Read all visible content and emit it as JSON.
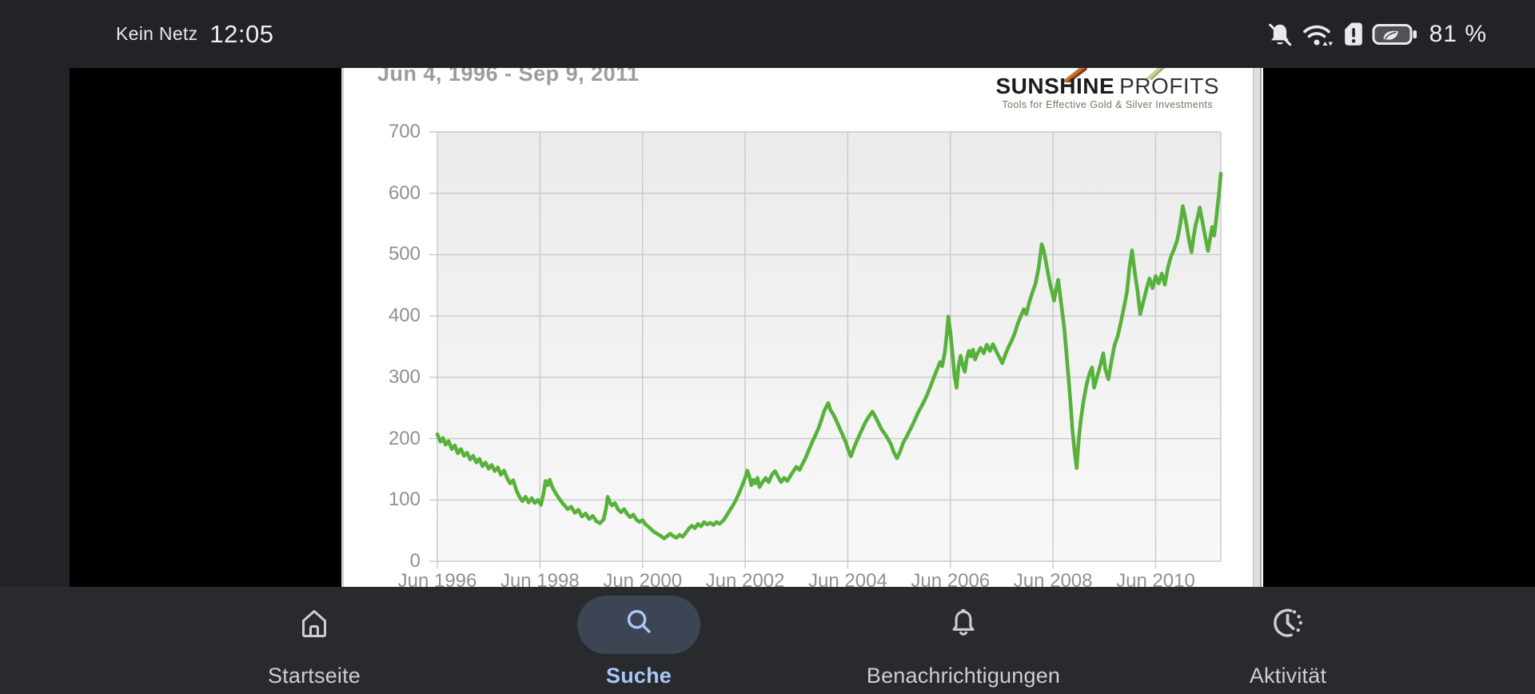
{
  "status_bar": {
    "carrier": "Kein Netz",
    "time": "12:05",
    "battery_percent": "81 %",
    "icons": [
      "notifications-off-icon",
      "wifi-icon",
      "sim-alert-icon",
      "battery-saver-icon"
    ]
  },
  "chart_data": {
    "type": "line",
    "title": "Jun 4, 1996 - Sep 9, 2011",
    "logo": {
      "brand_bold": "SUNSHINE",
      "brand_light": "PROFITS",
      "tagline": "Tools for Effective Gold & Silver Investments"
    },
    "ylim": [
      0,
      700
    ],
    "yticks": [
      0,
      100,
      200,
      300,
      400,
      500,
      600,
      700
    ],
    "xticks": [
      {
        "label": "Jun 1996",
        "t": 1996.42
      },
      {
        "label": "Jun 1998",
        "t": 1998.42
      },
      {
        "label": "Jun 2000",
        "t": 2000.42
      },
      {
        "label": "Jun 2002",
        "t": 2002.42
      },
      {
        "label": "Jun 2004",
        "t": 2004.42
      },
      {
        "label": "Jun 2006",
        "t": 2006.42
      },
      {
        "label": "Jun 2008",
        "t": 2008.42
      },
      {
        "label": "Jun 2010",
        "t": 2010.42
      }
    ],
    "x_range": [
      1996.42,
      2011.69
    ],
    "grid": true,
    "legend": "none",
    "line_color": "#57b13b",
    "grid_color": "#c9c9c9",
    "label_color": "#909090",
    "series": [
      {
        "points": [
          [
            1996.42,
            207
          ],
          [
            1996.48,
            195
          ],
          [
            1996.53,
            201
          ],
          [
            1996.58,
            190
          ],
          [
            1996.64,
            196
          ],
          [
            1996.7,
            183
          ],
          [
            1996.76,
            189
          ],
          [
            1996.82,
            176
          ],
          [
            1996.88,
            183
          ],
          [
            1996.94,
            172
          ],
          [
            1997.0,
            177
          ],
          [
            1997.06,
            166
          ],
          [
            1997.12,
            172
          ],
          [
            1997.18,
            161
          ],
          [
            1997.24,
            167
          ],
          [
            1997.3,
            155
          ],
          [
            1997.36,
            161
          ],
          [
            1997.42,
            151
          ],
          [
            1997.48,
            157
          ],
          [
            1997.54,
            147
          ],
          [
            1997.6,
            153
          ],
          [
            1997.66,
            141
          ],
          [
            1997.72,
            148
          ],
          [
            1997.78,
            136
          ],
          [
            1997.84,
            127
          ],
          [
            1997.9,
            132
          ],
          [
            1997.96,
            116
          ],
          [
            1998.02,
            105
          ],
          [
            1998.08,
            98
          ],
          [
            1998.14,
            105
          ],
          [
            1998.2,
            96
          ],
          [
            1998.26,
            103
          ],
          [
            1998.32,
            95
          ],
          [
            1998.38,
            100
          ],
          [
            1998.44,
            92
          ],
          [
            1998.49,
            110
          ],
          [
            1998.53,
            131
          ],
          [
            1998.57,
            124
          ],
          [
            1998.61,
            133
          ],
          [
            1998.66,
            121
          ],
          [
            1998.72,
            112
          ],
          [
            1998.78,
            104
          ],
          [
            1998.84,
            97
          ],
          [
            1998.9,
            91
          ],
          [
            1998.96,
            85
          ],
          [
            1999.03,
            89
          ],
          [
            1999.1,
            79
          ],
          [
            1999.17,
            84
          ],
          [
            1999.24,
            73
          ],
          [
            1999.31,
            78
          ],
          [
            1999.38,
            69
          ],
          [
            1999.45,
            74
          ],
          [
            1999.52,
            65
          ],
          [
            1999.59,
            62
          ],
          [
            1999.66,
            68
          ],
          [
            1999.71,
            86
          ],
          [
            1999.74,
            105
          ],
          [
            1999.78,
            97
          ],
          [
            1999.82,
            91
          ],
          [
            1999.88,
            95
          ],
          [
            1999.94,
            85
          ],
          [
            2000.0,
            80
          ],
          [
            2000.06,
            85
          ],
          [
            2000.12,
            77
          ],
          [
            2000.18,
            72
          ],
          [
            2000.24,
            76
          ],
          [
            2000.3,
            68
          ],
          [
            2000.36,
            64
          ],
          [
            2000.42,
            67
          ],
          [
            2000.48,
            60
          ],
          [
            2000.54,
            56
          ],
          [
            2000.6,
            51
          ],
          [
            2000.66,
            47
          ],
          [
            2000.72,
            44
          ],
          [
            2000.78,
            41
          ],
          [
            2000.84,
            37
          ],
          [
            2000.9,
            41
          ],
          [
            2000.96,
            45
          ],
          [
            2001.02,
            41
          ],
          [
            2001.08,
            38
          ],
          [
            2001.14,
            43
          ],
          [
            2001.2,
            40
          ],
          [
            2001.26,
            46
          ],
          [
            2001.32,
            53
          ],
          [
            2001.38,
            58
          ],
          [
            2001.44,
            54
          ],
          [
            2001.5,
            61
          ],
          [
            2001.56,
            57
          ],
          [
            2001.62,
            64
          ],
          [
            2001.68,
            60
          ],
          [
            2001.74,
            63
          ],
          [
            2001.8,
            59
          ],
          [
            2001.86,
            64
          ],
          [
            2001.92,
            61
          ],
          [
            2002.0,
            67
          ],
          [
            2002.06,
            75
          ],
          [
            2002.12,
            83
          ],
          [
            2002.18,
            91
          ],
          [
            2002.24,
            100
          ],
          [
            2002.3,
            111
          ],
          [
            2002.36,
            123
          ],
          [
            2002.42,
            136
          ],
          [
            2002.46,
            148
          ],
          [
            2002.5,
            139
          ],
          [
            2002.54,
            124
          ],
          [
            2002.58,
            133
          ],
          [
            2002.62,
            127
          ],
          [
            2002.66,
            136
          ],
          [
            2002.7,
            121
          ],
          [
            2002.76,
            129
          ],
          [
            2002.82,
            136
          ],
          [
            2002.88,
            129
          ],
          [
            2002.94,
            141
          ],
          [
            2003.0,
            147
          ],
          [
            2003.06,
            138
          ],
          [
            2003.12,
            129
          ],
          [
            2003.18,
            136
          ],
          [
            2003.24,
            131
          ],
          [
            2003.3,
            139
          ],
          [
            2003.36,
            147
          ],
          [
            2003.42,
            154
          ],
          [
            2003.48,
            149
          ],
          [
            2003.54,
            159
          ],
          [
            2003.6,
            169
          ],
          [
            2003.66,
            181
          ],
          [
            2003.72,
            193
          ],
          [
            2003.78,
            204
          ],
          [
            2003.84,
            215
          ],
          [
            2003.9,
            229
          ],
          [
            2003.96,
            245
          ],
          [
            2004.0,
            252
          ],
          [
            2004.04,
            258
          ],
          [
            2004.08,
            247
          ],
          [
            2004.14,
            239
          ],
          [
            2004.2,
            229
          ],
          [
            2004.26,
            217
          ],
          [
            2004.32,
            206
          ],
          [
            2004.38,
            194
          ],
          [
            2004.44,
            179
          ],
          [
            2004.48,
            171
          ],
          [
            2004.54,
            185
          ],
          [
            2004.6,
            197
          ],
          [
            2004.66,
            208
          ],
          [
            2004.72,
            219
          ],
          [
            2004.78,
            229
          ],
          [
            2004.84,
            237
          ],
          [
            2004.9,
            244
          ],
          [
            2004.96,
            235
          ],
          [
            2005.02,
            225
          ],
          [
            2005.08,
            215
          ],
          [
            2005.14,
            208
          ],
          [
            2005.2,
            200
          ],
          [
            2005.26,
            191
          ],
          [
            2005.32,
            177
          ],
          [
            2005.38,
            168
          ],
          [
            2005.44,
            179
          ],
          [
            2005.5,
            193
          ],
          [
            2005.56,
            202
          ],
          [
            2005.62,
            212
          ],
          [
            2005.68,
            222
          ],
          [
            2005.74,
            233
          ],
          [
            2005.8,
            244
          ],
          [
            2005.86,
            253
          ],
          [
            2005.92,
            263
          ],
          [
            2005.98,
            274
          ],
          [
            2006.04,
            287
          ],
          [
            2006.1,
            300
          ],
          [
            2006.16,
            313
          ],
          [
            2006.22,
            325
          ],
          [
            2006.26,
            318
          ],
          [
            2006.31,
            340
          ],
          [
            2006.35,
            371
          ],
          [
            2006.38,
            399
          ],
          [
            2006.42,
            373
          ],
          [
            2006.46,
            339
          ],
          [
            2006.5,
            303
          ],
          [
            2006.54,
            283
          ],
          [
            2006.58,
            319
          ],
          [
            2006.62,
            335
          ],
          [
            2006.66,
            319
          ],
          [
            2006.7,
            309
          ],
          [
            2006.74,
            331
          ],
          [
            2006.78,
            343
          ],
          [
            2006.82,
            334
          ],
          [
            2006.86,
            345
          ],
          [
            2006.9,
            329
          ],
          [
            2006.95,
            339
          ],
          [
            2007.01,
            348
          ],
          [
            2007.07,
            339
          ],
          [
            2007.13,
            353
          ],
          [
            2007.19,
            343
          ],
          [
            2007.25,
            354
          ],
          [
            2007.31,
            343
          ],
          [
            2007.37,
            333
          ],
          [
            2007.43,
            323
          ],
          [
            2007.49,
            337
          ],
          [
            2007.55,
            349
          ],
          [
            2007.61,
            359
          ],
          [
            2007.67,
            371
          ],
          [
            2007.73,
            387
          ],
          [
            2007.79,
            399
          ],
          [
            2007.85,
            411
          ],
          [
            2007.9,
            403
          ],
          [
            2007.96,
            423
          ],
          [
            2008.02,
            439
          ],
          [
            2008.08,
            453
          ],
          [
            2008.14,
            479
          ],
          [
            2008.2,
            517
          ],
          [
            2008.24,
            506
          ],
          [
            2008.28,
            489
          ],
          [
            2008.32,
            471
          ],
          [
            2008.36,
            453
          ],
          [
            2008.4,
            439
          ],
          [
            2008.44,
            425
          ],
          [
            2008.48,
            444
          ],
          [
            2008.52,
            459
          ],
          [
            2008.56,
            433
          ],
          [
            2008.6,
            406
          ],
          [
            2008.64,
            379
          ],
          [
            2008.68,
            341
          ],
          [
            2008.72,
            301
          ],
          [
            2008.76,
            259
          ],
          [
            2008.8,
            213
          ],
          [
            2008.84,
            179
          ],
          [
            2008.88,
            152
          ],
          [
            2008.92,
            197
          ],
          [
            2008.96,
            229
          ],
          [
            2009.01,
            259
          ],
          [
            2009.07,
            287
          ],
          [
            2009.13,
            306
          ],
          [
            2009.18,
            316
          ],
          [
            2009.22,
            283
          ],
          [
            2009.28,
            301
          ],
          [
            2009.34,
            319
          ],
          [
            2009.4,
            339
          ],
          [
            2009.44,
            313
          ],
          [
            2009.5,
            297
          ],
          [
            2009.56,
            327
          ],
          [
            2009.62,
            353
          ],
          [
            2009.68,
            367
          ],
          [
            2009.74,
            389
          ],
          [
            2009.8,
            413
          ],
          [
            2009.86,
            439
          ],
          [
            2009.91,
            479
          ],
          [
            2009.96,
            507
          ],
          [
            2010.01,
            473
          ],
          [
            2010.07,
            439
          ],
          [
            2010.12,
            403
          ],
          [
            2010.18,
            423
          ],
          [
            2010.24,
            443
          ],
          [
            2010.3,
            461
          ],
          [
            2010.36,
            445
          ],
          [
            2010.42,
            465
          ],
          [
            2010.48,
            453
          ],
          [
            2010.54,
            469
          ],
          [
            2010.6,
            451
          ],
          [
            2010.66,
            479
          ],
          [
            2010.72,
            497
          ],
          [
            2010.78,
            509
          ],
          [
            2010.84,
            523
          ],
          [
            2010.9,
            549
          ],
          [
            2010.95,
            579
          ],
          [
            2011.0,
            559
          ],
          [
            2011.04,
            539
          ],
          [
            2011.08,
            519
          ],
          [
            2011.12,
            504
          ],
          [
            2011.16,
            529
          ],
          [
            2011.2,
            549
          ],
          [
            2011.24,
            561
          ],
          [
            2011.28,
            577
          ],
          [
            2011.32,
            559
          ],
          [
            2011.36,
            541
          ],
          [
            2011.4,
            523
          ],
          [
            2011.44,
            506
          ],
          [
            2011.48,
            525
          ],
          [
            2011.52,
            545
          ],
          [
            2011.56,
            531
          ],
          [
            2011.6,
            557
          ],
          [
            2011.63,
            581
          ],
          [
            2011.66,
            603
          ],
          [
            2011.69,
            632
          ]
        ]
      }
    ]
  },
  "bottom_nav": {
    "active_color": "#a9c7fa",
    "inactive_color": "#cdced2",
    "pill_color": "#3d4454",
    "items": [
      {
        "label": "Startseite",
        "icon": "home-icon",
        "active": false
      },
      {
        "label": "Suche",
        "icon": "search-icon",
        "active": true
      },
      {
        "label": "Benachrichtigungen",
        "icon": "bell-icon",
        "active": false
      },
      {
        "label": "Aktivität",
        "icon": "activity-history-icon",
        "active": false
      }
    ]
  }
}
